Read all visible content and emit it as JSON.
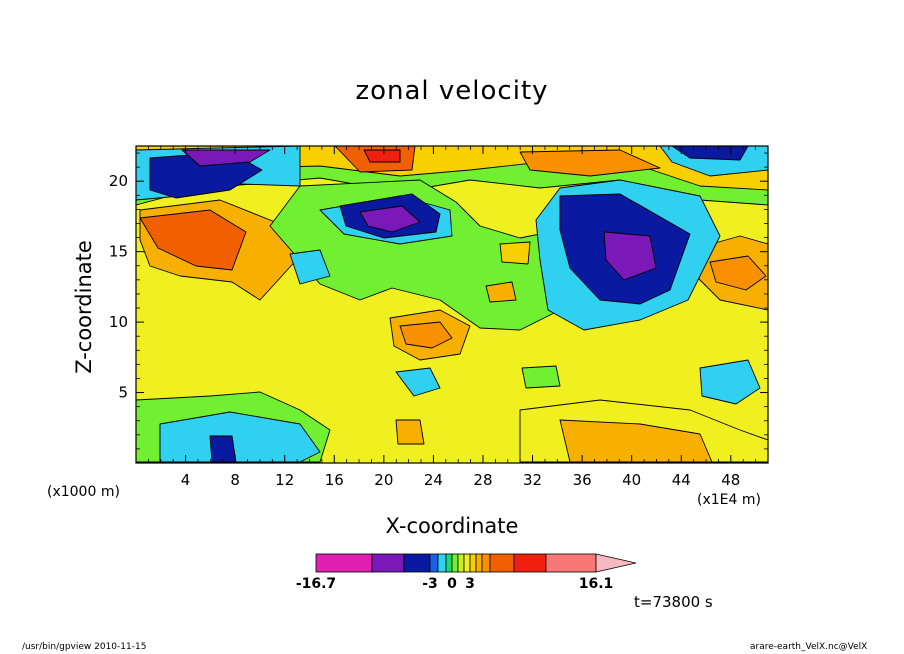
{
  "chart_data": {
    "type": "heatmap",
    "title": "zonal velocity",
    "xlabel": "X-coordinate",
    "ylabel": "Z-coordinate",
    "x_units_left": "(x1000 m)",
    "x_units_right": "(x1E4 m)",
    "x_ticks": [
      "4",
      "8",
      "12",
      "16",
      "20",
      "24",
      "28",
      "32",
      "36",
      "40",
      "44",
      "48"
    ],
    "x_tick_values": [
      4,
      8,
      12,
      16,
      20,
      24,
      28,
      32,
      36,
      40,
      44,
      48
    ],
    "y_ticks": [
      "5",
      "10",
      "15",
      "20"
    ],
    "y_tick_values": [
      5,
      10,
      15,
      20
    ],
    "xlim": [
      0,
      51
    ],
    "ylim": [
      0,
      22.5
    ],
    "colorbar": {
      "labels": [
        "-16.7",
        "-3",
        "0",
        "3",
        "16.1"
      ],
      "label_values": [
        -16.7,
        -3,
        0,
        3,
        16.1
      ],
      "colors": [
        "#e020b0",
        "#7a18b8",
        "#0a1aa0",
        "#1a60e0",
        "#30d0f0",
        "#20d870",
        "#70f030",
        "#c8f020",
        "#f0f020",
        "#f8d000",
        "#f8b000",
        "#f89000",
        "#f06000",
        "#f02010",
        "#f87878",
        "#f8b8c0"
      ],
      "extend": "max"
    },
    "annotation": "t=73800 s"
  },
  "footer": {
    "left": "/usr/bin/gpview  2010-11-15",
    "right": "arare-earth_VelX.nc@VelX"
  }
}
